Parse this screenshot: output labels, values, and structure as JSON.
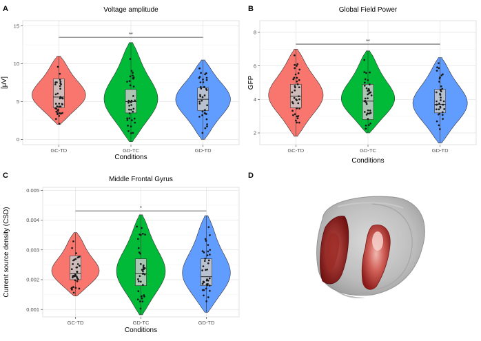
{
  "panels": {
    "A": {
      "letter": "A"
    },
    "B": {
      "letter": "B"
    },
    "C": {
      "letter": "C"
    },
    "D": {
      "letter": "D"
    }
  },
  "colors": {
    "GC-TD": "#F8766D",
    "GD-TC": "#00BA38",
    "GD-TD": "#619CFF"
  },
  "chart_data": [
    {
      "type": "violin",
      "panel": "A",
      "title": "Voltage amplitude",
      "xlabel": "Conditions",
      "ylabel": "[μV]",
      "ylim": [
        -0.7,
        15.7
      ],
      "yticks": [
        0,
        5,
        10,
        15
      ],
      "grid": true,
      "categories": [
        "GC-TD",
        "GD-TC",
        "GD-TD"
      ],
      "ranges": [
        [
          2.0,
          11.0
        ],
        [
          -0.3,
          12.8
        ],
        [
          0.0,
          10.5
        ]
      ],
      "boxes": [
        {
          "q1": 4.2,
          "median": 5.6,
          "q3": 8.0
        },
        {
          "q1": 3.5,
          "median": 5.0,
          "q3": 6.6
        },
        {
          "q1": 3.8,
          "median": 5.3,
          "q3": 6.8
        }
      ],
      "significance": {
        "from": "GC-TD",
        "to": "GD-TD",
        "y": 13.5,
        "label": "**"
      }
    },
    {
      "type": "violin",
      "panel": "B",
      "title": "Global Field Power",
      "xlabel": "Conditions",
      "ylabel": "GFP",
      "ylim": [
        1.3,
        8.7
      ],
      "yticks": [
        2,
        4,
        6,
        8
      ],
      "grid": true,
      "categories": [
        "GC-TD",
        "GD-TC",
        "GD-TD"
      ],
      "ranges": [
        [
          1.8,
          7.0
        ],
        [
          2.0,
          6.9
        ],
        [
          1.4,
          6.5
        ]
      ],
      "boxes": [
        {
          "q1": 3.5,
          "median": 4.2,
          "q3": 4.9
        },
        {
          "q1": 2.8,
          "median": 3.9,
          "q3": 4.9
        },
        {
          "q1": 3.2,
          "median": 3.7,
          "q3": 4.6
        }
      ],
      "significance": {
        "from": "GC-TD",
        "to": "GD-TD",
        "y": 7.3,
        "label": "**"
      }
    },
    {
      "type": "violin",
      "panel": "C",
      "title": "Middle Frontal Gyrus",
      "xlabel": "Conditions",
      "ylabel": "Current source density (CSD)",
      "ylim": [
        0.00075,
        0.0051
      ],
      "yticks": [
        0.001,
        0.002,
        0.003,
        0.004,
        0.005
      ],
      "yticklabels": [
        "0.001",
        "0.002",
        "0.003",
        "0.004",
        "0.005"
      ],
      "grid": true,
      "categories": [
        "GC-TD",
        "GD-TC",
        "GD-TD"
      ],
      "ranges": [
        [
          0.00145,
          0.00358
        ],
        [
          0.00082,
          0.00418
        ],
        [
          0.0009,
          0.00415
        ]
      ],
      "boxes": [
        {
          "q1": 0.002,
          "median": 0.0022,
          "q3": 0.0028
        },
        {
          "q1": 0.0018,
          "median": 0.0022,
          "q3": 0.0027
        },
        {
          "q1": 0.0018,
          "median": 0.0021,
          "q3": 0.0027
        }
      ],
      "significance": {
        "from": "GC-TD",
        "to": "GD-TD",
        "y": 0.00431,
        "label": "*"
      }
    }
  ]
}
